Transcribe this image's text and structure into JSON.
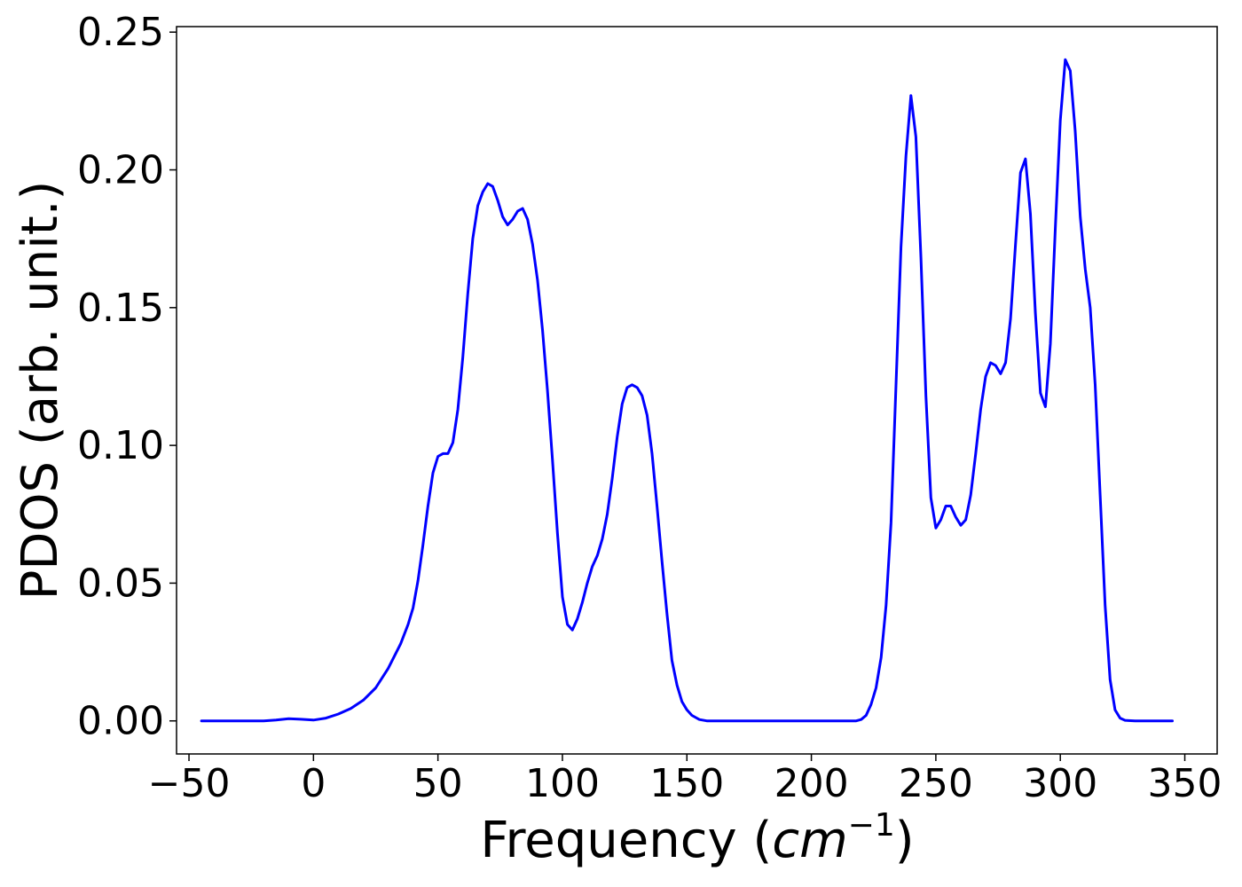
{
  "chart_data": {
    "type": "line",
    "xlabel_main": "Frequency (",
    "xlabel_unit": "cm",
    "xlabel_sup": "−1",
    "xlabel_close": ")",
    "ylabel": "PDOS (arb. unit.)",
    "xlim": [
      -55,
      363
    ],
    "ylim": [
      -0.012,
      0.252
    ],
    "xticks": [
      -50,
      0,
      50,
      100,
      150,
      200,
      250,
      300,
      350
    ],
    "xtick_labels": [
      "−50",
      "0",
      "50",
      "100",
      "150",
      "200",
      "250",
      "300",
      "350"
    ],
    "yticks": [
      0.0,
      0.05,
      0.1,
      0.15,
      0.2,
      0.25
    ],
    "ytick_labels": [
      "0.00",
      "0.05",
      "0.10",
      "0.15",
      "0.20",
      "0.25"
    ],
    "grid": false,
    "line_color": "#0000ff",
    "series": [
      {
        "x": [
          -45,
          -20,
          -15,
          -10,
          -5,
          0,
          5,
          10,
          15,
          20,
          25,
          30,
          35,
          38,
          40,
          42,
          44,
          46,
          48,
          50,
          52,
          54,
          56,
          58,
          60,
          62,
          64,
          66,
          68,
          70,
          72,
          74,
          76,
          78,
          80,
          82,
          84,
          86,
          88,
          90,
          92,
          94,
          96,
          98,
          100,
          102,
          104,
          106,
          108,
          110,
          112,
          114,
          116,
          118,
          120,
          122,
          124,
          126,
          128,
          130,
          132,
          134,
          136,
          138,
          140,
          142,
          144,
          146,
          148,
          150,
          152,
          155,
          158,
          160,
          170,
          180,
          200,
          210,
          218,
          220,
          222,
          224,
          226,
          228,
          230,
          232,
          234,
          236,
          238,
          240,
          242,
          244,
          246,
          248,
          250,
          252,
          254,
          256,
          258,
          260,
          262,
          264,
          266,
          268,
          270,
          272,
          274,
          276,
          278,
          280,
          282,
          284,
          286,
          288,
          290,
          292,
          294,
          296,
          298,
          300,
          302,
          304,
          306,
          308,
          310,
          312,
          314,
          316,
          318,
          320,
          322,
          324,
          326,
          330,
          345
        ],
        "y": [
          0.0,
          0.0,
          0.0003,
          0.0008,
          0.0006,
          0.0003,
          0.001,
          0.0025,
          0.0045,
          0.0075,
          0.012,
          0.019,
          0.028,
          0.035,
          0.041,
          0.051,
          0.064,
          0.078,
          0.09,
          0.096,
          0.097,
          0.097,
          0.101,
          0.113,
          0.132,
          0.155,
          0.175,
          0.187,
          0.192,
          0.195,
          0.194,
          0.189,
          0.183,
          0.18,
          0.182,
          0.185,
          0.186,
          0.182,
          0.173,
          0.16,
          0.142,
          0.12,
          0.095,
          0.068,
          0.045,
          0.035,
          0.033,
          0.037,
          0.043,
          0.05,
          0.056,
          0.06,
          0.066,
          0.075,
          0.088,
          0.103,
          0.115,
          0.121,
          0.122,
          0.121,
          0.118,
          0.111,
          0.097,
          0.078,
          0.058,
          0.039,
          0.022,
          0.013,
          0.007,
          0.004,
          0.002,
          0.0005,
          0.0,
          0.0,
          0.0,
          0.0,
          0.0,
          0.0,
          0.0,
          0.0005,
          0.002,
          0.006,
          0.012,
          0.023,
          0.042,
          0.072,
          0.122,
          0.172,
          0.205,
          0.227,
          0.212,
          0.168,
          0.118,
          0.081,
          0.07,
          0.073,
          0.078,
          0.078,
          0.074,
          0.071,
          0.073,
          0.082,
          0.097,
          0.113,
          0.125,
          0.13,
          0.129,
          0.126,
          0.13,
          0.146,
          0.173,
          0.199,
          0.204,
          0.184,
          0.148,
          0.119,
          0.114,
          0.137,
          0.179,
          0.218,
          0.24,
          0.236,
          0.214,
          0.183,
          0.164,
          0.15,
          0.122,
          0.082,
          0.042,
          0.015,
          0.004,
          0.001,
          0.0002,
          0.0,
          0.0
        ]
      }
    ]
  }
}
